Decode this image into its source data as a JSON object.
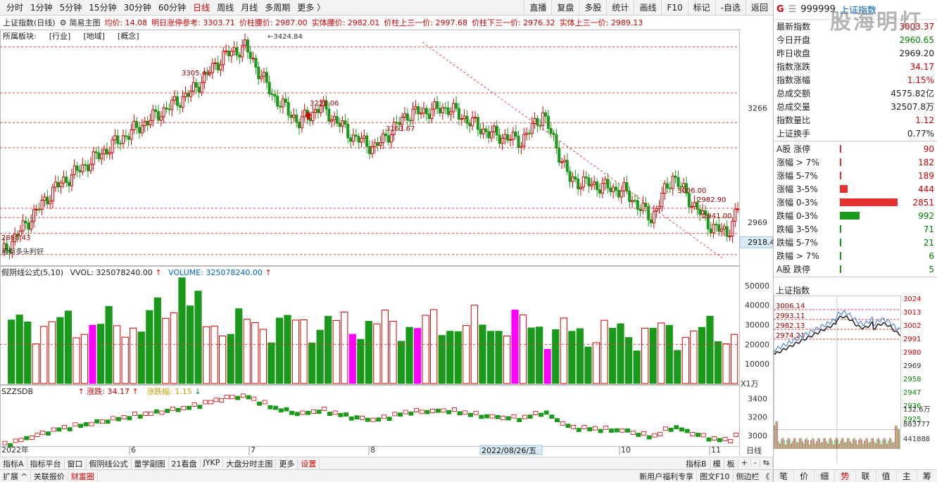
{
  "toolbar": {
    "periods": [
      "分时",
      "1分钟",
      "5分钟",
      "15分钟",
      "30分钟",
      "60分钟",
      "日线",
      "周线",
      "月线",
      "多周期",
      "更多 〉"
    ],
    "active_period": "日线",
    "right_buttons": [
      "直播",
      "复盘",
      "多股",
      "统计",
      "画线",
      "F10",
      "标记",
      "-自选",
      "返回"
    ]
  },
  "infobar": {
    "title": "上证指数(日线)",
    "subtitle": "简易主图",
    "items": [
      "均价: 14.08",
      "明日涨停参考: 3303.71",
      "价柱腰价: 2987.00",
      "实体腰价: 2982.01",
      "价柱上三一价: 2997.68",
      "价柱下三一价: 2976.32",
      "实体上三一价: 2989.13"
    ]
  },
  "sector": [
    "所属板块:",
    "[行业]",
    "[地域]",
    "[概念]"
  ],
  "price_chart": {
    "axis_labels": [
      "3266",
      "2969"
    ],
    "current_price_tag": "2918.4",
    "annotations": {
      "high": "3424.84",
      "a1": "3305.41",
      "a2": "3228.06",
      "a3": "3163.67",
      "a4": "3006.00",
      "a5": "2982.90",
      "a6": "2941.00",
      "low": "2886.43",
      "bottom_left": "用到多头利好"
    }
  },
  "volume_panel": {
    "title": "假阴线公式(5,10)",
    "vvol": "VVOL: 325078240.00",
    "volume": "VOLUME: 325078240.00",
    "axis_labels": [
      "50000",
      "40000",
      "30000",
      "20000",
      "10000"
    ],
    "unit": "X1万"
  },
  "index_panel": {
    "title": "SZZSDB",
    "change_label": "涨跌: 34.17",
    "pct_label": "涨跌幅: 1.15",
    "axis_labels": [
      "3400",
      "3200",
      "3000"
    ]
  },
  "date_axis": {
    "labels": [
      "2022年",
      "6",
      "7",
      "8",
      "9",
      "10",
      "11"
    ],
    "highlight": "2022/08/26/五",
    "right_label": "日线"
  },
  "bottom_bar1": {
    "items": [
      "指标A",
      "指标平台",
      "窗口",
      "假阴线公式",
      "量学副图",
      "21看盘",
      "JYKP",
      "大盘分时主图",
      "更多",
      "设置"
    ],
    "right": [
      "指标B",
      "模",
      "板",
      "+",
      "-",
      "⇆"
    ]
  },
  "bottom_bar2": {
    "items": [
      "扩展 ^",
      "关联报价",
      "财富圈"
    ],
    "right": [
      "新用户福利专享",
      "图文F10",
      "侧边栏 《"
    ]
  },
  "side_panel": {
    "marker": "G",
    "code": "999999",
    "name": "上证指数",
    "watermark": "股海明灯",
    "stats": [
      {
        "label": "最新指数",
        "value": "3003.37",
        "color": "red"
      },
      {
        "label": "今日开盘",
        "value": "2960.65",
        "color": "green"
      },
      {
        "label": "昨日收盘",
        "value": "2969.20",
        "color": "black"
      },
      {
        "label": "指数涨跌",
        "value": "34.17",
        "color": "red"
      },
      {
        "label": "指数涨幅",
        "value": "1.15%",
        "color": "red"
      },
      {
        "label": "总成交额",
        "value": "4575.82亿",
        "color": "black"
      },
      {
        "label": "总成交量",
        "value": "32507.8万",
        "color": "black"
      },
      {
        "label": "指数量比",
        "value": "1.12",
        "color": "red"
      },
      {
        "label": "上证换手",
        "value": "0.77%",
        "color": "black"
      }
    ],
    "breadth": [
      {
        "label": "A股 涨停",
        "value": "90",
        "color": "red",
        "ratio": 0.01
      },
      {
        "label": "涨幅 > 7%",
        "value": "182",
        "color": "red",
        "ratio": 0.03
      },
      {
        "label": "涨幅 5-7%",
        "value": "189",
        "color": "red",
        "ratio": 0.03
      },
      {
        "label": "涨幅 3-5%",
        "value": "444",
        "color": "red",
        "ratio": 0.14
      },
      {
        "label": "涨幅 0-3%",
        "value": "2851",
        "color": "red",
        "ratio": 1.0
      },
      {
        "label": "跌幅 0-3%",
        "value": "992",
        "color": "green",
        "ratio": 0.34
      },
      {
        "label": "跌幅 3-5%",
        "value": "71",
        "color": "green",
        "ratio": 0.02
      },
      {
        "label": "跌幅 5-7%",
        "value": "21",
        "color": "green",
        "ratio": 0.01
      },
      {
        "label": "跌幅 > 7%",
        "value": "6",
        "color": "green",
        "ratio": 0.005
      },
      {
        "label": "A股 跌停",
        "value": "5",
        "color": "green",
        "ratio": 0.005
      }
    ],
    "mini_title": "上证指数",
    "mini_right_axis": [
      "3024",
      "3013",
      "3002",
      "2991",
      "2980",
      "2969",
      "2958",
      "2947",
      "2936",
      "2925"
    ],
    "mini_left_labels": [
      "3006.14",
      "2993.11",
      "2982.13",
      "2974.21"
    ],
    "mini_pct": "0.61",
    "mini_volume_axis": [
      "132.6万",
      "883777",
      "441888"
    ],
    "tabs": [
      "笔",
      "价",
      "细",
      "势",
      "联",
      "值",
      "主",
      "筹"
    ],
    "active_tab": "势"
  },
  "colors": {
    "up": "#d00000",
    "down": "#1a9a1a",
    "magenta": "#ff00ff",
    "blue": "#0066cc"
  }
}
